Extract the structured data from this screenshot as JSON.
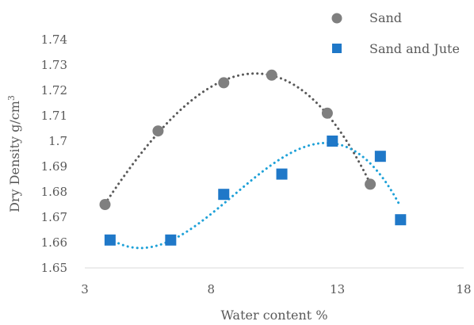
{
  "chart_data": {
    "type": "scatter",
    "xlabel": "Water content %",
    "ylabel_main": "Dry Density g/cm",
    "ylabel_sup": "3",
    "xlim": [
      3,
      18
    ],
    "ylim": [
      1.65,
      1.74
    ],
    "xticks": [
      3,
      8,
      13,
      18
    ],
    "xtick_labels": [
      "3",
      "8",
      "13",
      "18"
    ],
    "yticks": [
      1.65,
      1.66,
      1.67,
      1.68,
      1.69,
      1.7,
      1.71,
      1.72,
      1.73,
      1.74
    ],
    "ytick_labels": [
      "1.65",
      "1.66",
      "1.67",
      "1.68",
      "1.69",
      "1.7",
      "1.71",
      "1.72",
      "1.73",
      "1.74"
    ],
    "grid": false,
    "legend_position": "top-right",
    "series": [
      {
        "name": "Sand",
        "marker": "circle",
        "color": "#7f7f7f",
        "trendline_color": "#595959",
        "x": [
          3.8,
          5.9,
          8.5,
          10.4,
          12.6,
          14.3
        ],
        "y": [
          1.675,
          1.704,
          1.723,
          1.726,
          1.711,
          1.683
        ]
      },
      {
        "name": "Sand and Jute",
        "marker": "square",
        "color": "#1f78c8",
        "trendline_color": "#1ea1d8",
        "x": [
          4.0,
          6.4,
          8.5,
          10.8,
          12.8,
          14.7,
          15.5
        ],
        "y": [
          1.661,
          1.661,
          1.679,
          1.687,
          1.7,
          1.694,
          1.669
        ]
      }
    ]
  }
}
